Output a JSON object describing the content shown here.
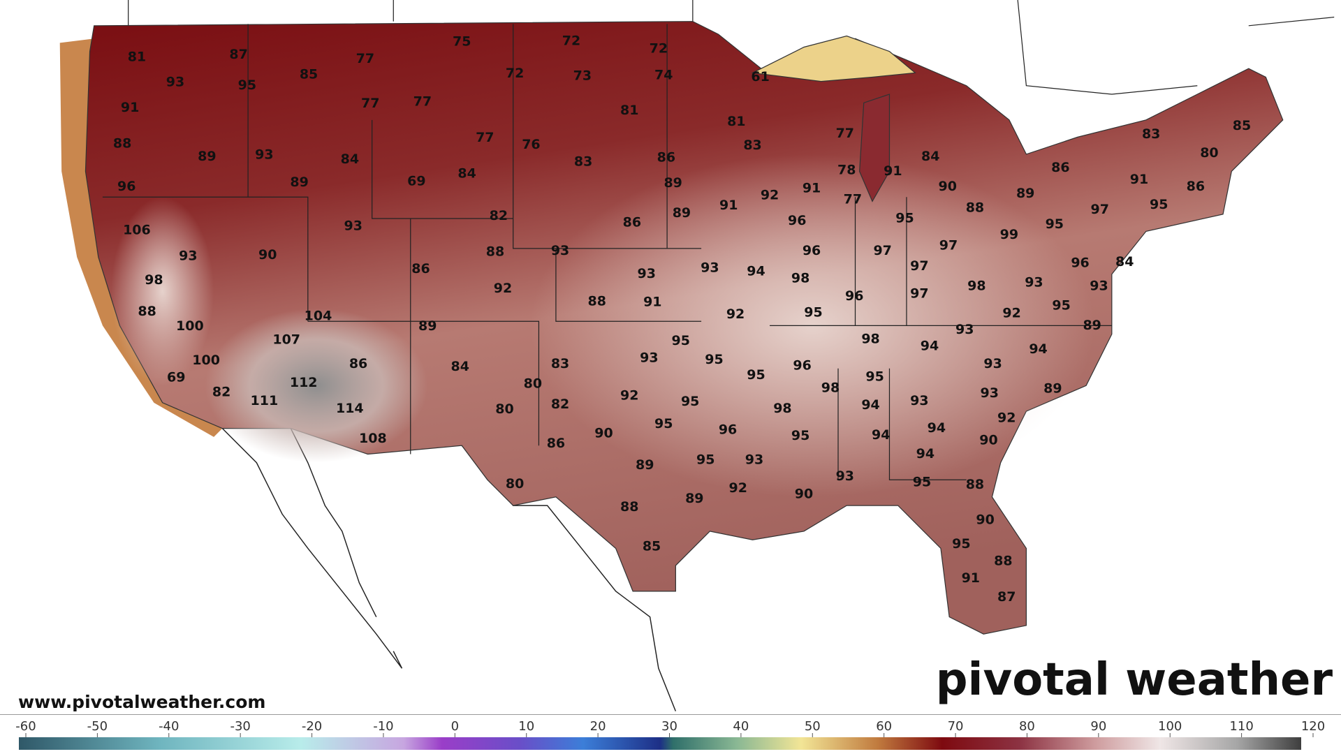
{
  "map": {
    "labels": [
      81,
      87,
      93,
      95,
      85,
      77,
      75,
      72,
      72,
      72,
      73,
      74,
      61,
      91,
      77,
      77,
      81,
      81,
      77,
      83,
      85,
      88,
      89,
      93,
      84,
      77,
      76,
      83,
      86,
      83,
      84,
      86,
      80,
      96,
      89,
      69,
      84,
      89,
      91,
      92,
      91,
      78,
      91,
      90,
      89,
      91,
      86,
      106,
      93,
      90,
      82,
      86,
      89,
      96,
      77,
      95,
      88,
      99,
      95,
      97,
      95,
      93,
      88,
      93,
      86,
      93,
      93,
      94,
      96,
      97,
      97,
      97,
      96,
      84,
      98,
      92,
      88,
      91,
      92,
      98,
      96,
      97,
      98,
      93,
      93,
      88,
      100,
      104,
      89,
      95,
      92,
      95,
      89,
      107,
      95,
      98,
      93,
      94,
      94,
      100,
      86,
      93,
      95,
      95,
      96,
      93,
      69,
      82,
      112,
      84,
      83,
      80,
      95,
      98,
      93,
      89,
      111,
      114,
      82,
      80,
      92,
      95,
      94,
      93,
      98,
      92,
      108,
      86,
      90,
      95,
      96,
      95,
      94,
      94,
      90,
      89,
      95,
      93,
      94,
      93,
      80,
      92,
      89,
      90,
      95,
      88,
      88,
      90,
      85,
      95,
      88,
      91,
      87
    ]
  },
  "colorbar": {
    "lim": [
      -60,
      120
    ],
    "ticks": [
      -60,
      -50,
      -40,
      -30,
      -20,
      -10,
      0,
      10,
      20,
      30,
      40,
      50,
      60,
      70,
      80,
      90,
      100,
      110,
      120
    ]
  },
  "watermark": {
    "url": "www.pivotalweather.com",
    "logo": "pivotal weather"
  }
}
